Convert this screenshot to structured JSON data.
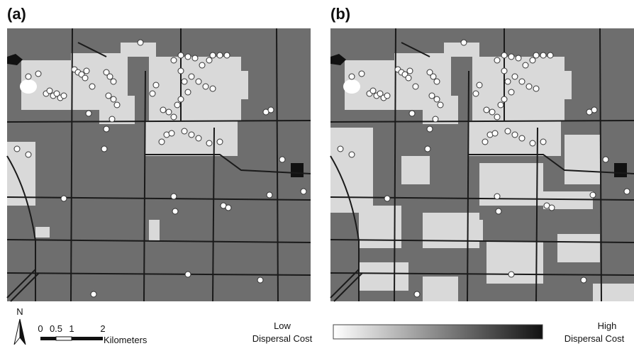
{
  "panels": [
    {
      "label": "(a)"
    },
    {
      "label": "(b)"
    }
  ],
  "north": "N",
  "scale_bar": {
    "ticks": [
      "0",
      "0.5",
      "1",
      "2"
    ],
    "unit": "Kilometers"
  },
  "legend": {
    "low": [
      "Low",
      "Dispersal Cost"
    ],
    "high": [
      "High",
      "Dispersal Cost"
    ]
  }
}
